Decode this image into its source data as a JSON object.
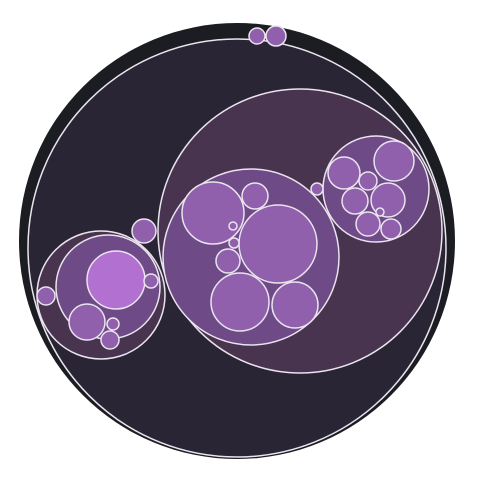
{
  "diagram": {
    "type": "circle-packing",
    "labels_shown": false,
    "colors": {
      "outer_ring": "#1b1d22",
      "root": "#2a2535",
      "level_1": "#49344f",
      "level_2": "#6e4a86",
      "leaf": "#9160ad",
      "leaf_highlight": "#b271d1",
      "stroke": "#e9e4ee"
    },
    "hierarchy": {
      "children": [
        {
          "children": [
            {
              "children": [
                {
                  "leaf": true
                },
                {
                  "leaf": true
                },
                {
                  "leaf": true
                },
                {
                  "leaf": true
                },
                {
                  "leaf": true
                },
                {
                  "leaf": true
                },
                {
                  "leaf": true
                },
                {
                  "leaf": true
                }
              ]
            },
            {
              "children": [
                {
                  "leaf": true
                },
                {
                  "leaf": true
                },
                {
                  "leaf": true
                },
                {
                  "leaf": true
                },
                {
                  "leaf": true
                },
                {
                  "leaf": true
                },
                {
                  "leaf": true
                },
                {
                  "leaf": true
                }
              ]
            },
            {
              "leaf": true
            }
          ]
        },
        {
          "children": [
            {
              "children": [
                {
                  "leaf": true,
                  "highlight": true
                },
                {
                  "leaf": true
                },
                {
                  "leaf": true
                },
                {
                  "leaf": true
                },
                {
                  "leaf": true
                }
              ]
            },
            {
              "leaf": true
            }
          ]
        },
        {
          "leaf": true
        },
        {
          "leaf": true
        },
        {
          "leaf": true
        }
      ]
    }
  }
}
